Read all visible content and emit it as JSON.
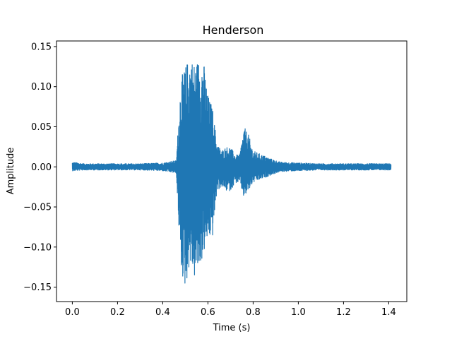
{
  "chart_data": {
    "type": "line",
    "title": "Henderson",
    "xlabel": "Time (s)",
    "ylabel": "Amplitude",
    "xlim": [
      -0.07,
      1.48
    ],
    "ylim": [
      -0.168,
      0.157
    ],
    "xticks": [
      0.0,
      0.2,
      0.4,
      0.6,
      0.8,
      1.0,
      1.2,
      1.4
    ],
    "xtick_labels": [
      "0.0",
      "0.2",
      "0.4",
      "0.6",
      "0.8",
      "1.0",
      "1.2",
      "1.4"
    ],
    "yticks": [
      -0.15,
      -0.1,
      -0.05,
      0.0,
      0.05,
      0.1,
      0.15
    ],
    "ytick_labels": [
      "−0.15",
      "−0.10",
      "−0.05",
      "0.00",
      "0.05",
      "0.10",
      "0.15"
    ],
    "grid": false,
    "series": [
      {
        "color": "#1f77b4",
        "envelope": {
          "time": [
            0.0,
            0.05,
            0.1,
            0.2,
            0.3,
            0.4,
            0.46,
            0.48,
            0.5,
            0.52,
            0.54,
            0.56,
            0.58,
            0.6,
            0.62,
            0.64,
            0.66,
            0.68,
            0.7,
            0.72,
            0.74,
            0.76,
            0.78,
            0.8,
            0.84,
            0.88,
            0.92,
            1.0,
            1.1,
            1.2,
            1.3,
            1.41
          ],
          "upper": [
            0.006,
            0.004,
            0.004,
            0.004,
            0.004,
            0.005,
            0.008,
            0.11,
            0.125,
            0.14,
            0.13,
            0.135,
            0.135,
            0.09,
            0.075,
            0.03,
            0.02,
            0.025,
            0.025,
            0.015,
            0.015,
            0.05,
            0.04,
            0.02,
            0.015,
            0.01,
            0.006,
            0.005,
            0.004,
            0.004,
            0.004,
            0.004
          ],
          "lower": [
            -0.005,
            -0.004,
            -0.004,
            -0.004,
            -0.004,
            -0.005,
            -0.008,
            -0.13,
            -0.153,
            -0.12,
            -0.14,
            -0.13,
            -0.11,
            -0.09,
            -0.09,
            -0.03,
            -0.025,
            -0.03,
            -0.03,
            -0.02,
            -0.02,
            -0.04,
            -0.03,
            -0.02,
            -0.015,
            -0.01,
            -0.006,
            -0.005,
            -0.004,
            -0.004,
            -0.004,
            -0.004
          ]
        }
      }
    ]
  }
}
